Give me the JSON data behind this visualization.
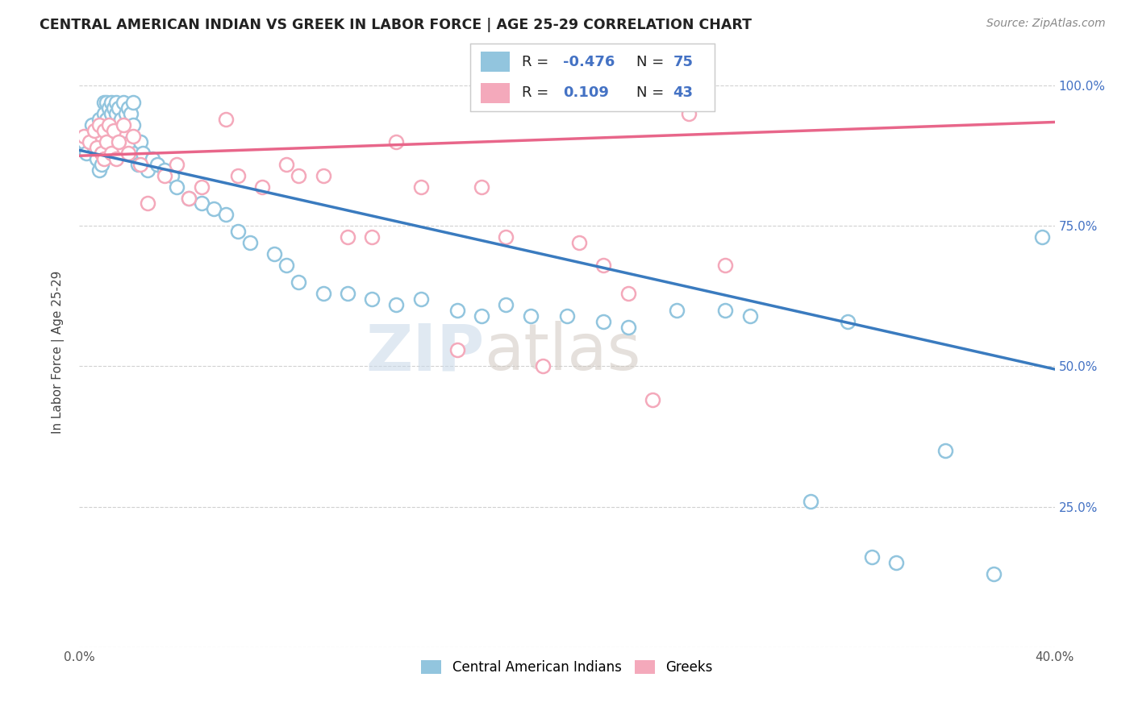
{
  "title": "CENTRAL AMERICAN INDIAN VS GREEK IN LABOR FORCE | AGE 25-29 CORRELATION CHART",
  "source": "Source: ZipAtlas.com",
  "ylabel": "In Labor Force | Age 25-29",
  "xmin": 0.0,
  "xmax": 0.4,
  "ymin": 0.0,
  "ymax": 1.05,
  "blue_color": "#92c5de",
  "pink_color": "#f4a9bb",
  "blue_line_color": "#3a7bbf",
  "pink_line_color": "#e8668a",
  "legend_R_blue": "-0.476",
  "legend_N_blue": "75",
  "legend_R_pink": "0.109",
  "legend_N_pink": "43",
  "watermark_zip": "ZIP",
  "watermark_atlas": "atlas",
  "blue_line_x0": 0.0,
  "blue_line_y0": 0.885,
  "blue_line_x1": 0.4,
  "blue_line_y1": 0.495,
  "pink_line_x0": 0.0,
  "pink_line_y0": 0.875,
  "pink_line_x1": 0.4,
  "pink_line_y1": 0.935,
  "blue_scatter_x": [
    0.002,
    0.003,
    0.004,
    0.005,
    0.006,
    0.007,
    0.007,
    0.008,
    0.008,
    0.009,
    0.009,
    0.01,
    0.01,
    0.01,
    0.011,
    0.011,
    0.012,
    0.012,
    0.013,
    0.013,
    0.014,
    0.014,
    0.015,
    0.015,
    0.015,
    0.016,
    0.017,
    0.018,
    0.018,
    0.019,
    0.02,
    0.021,
    0.022,
    0.022,
    0.023,
    0.024,
    0.025,
    0.026,
    0.028,
    0.03,
    0.032,
    0.035,
    0.038,
    0.04,
    0.045,
    0.05,
    0.055,
    0.06,
    0.065,
    0.07,
    0.08,
    0.085,
    0.09,
    0.1,
    0.11,
    0.12,
    0.13,
    0.14,
    0.155,
    0.165,
    0.175,
    0.185,
    0.2,
    0.215,
    0.225,
    0.245,
    0.265,
    0.275,
    0.3,
    0.315,
    0.325,
    0.335,
    0.355,
    0.375,
    0.395
  ],
  "blue_scatter_y": [
    0.9,
    0.88,
    0.91,
    0.93,
    0.89,
    0.92,
    0.87,
    0.94,
    0.85,
    0.91,
    0.86,
    0.97,
    0.95,
    0.93,
    0.97,
    0.94,
    0.96,
    0.92,
    0.97,
    0.95,
    0.96,
    0.9,
    0.97,
    0.95,
    0.93,
    0.96,
    0.94,
    0.97,
    0.92,
    0.95,
    0.96,
    0.95,
    0.97,
    0.93,
    0.88,
    0.86,
    0.9,
    0.88,
    0.85,
    0.87,
    0.86,
    0.85,
    0.84,
    0.82,
    0.8,
    0.79,
    0.78,
    0.77,
    0.74,
    0.72,
    0.7,
    0.68,
    0.65,
    0.63,
    0.63,
    0.62,
    0.61,
    0.62,
    0.6,
    0.59,
    0.61,
    0.59,
    0.59,
    0.58,
    0.57,
    0.6,
    0.6,
    0.59,
    0.26,
    0.58,
    0.16,
    0.15,
    0.35,
    0.13,
    0.73
  ],
  "pink_scatter_x": [
    0.002,
    0.004,
    0.006,
    0.007,
    0.008,
    0.009,
    0.01,
    0.01,
    0.011,
    0.012,
    0.013,
    0.014,
    0.015,
    0.016,
    0.018,
    0.02,
    0.022,
    0.025,
    0.028,
    0.035,
    0.04,
    0.045,
    0.05,
    0.06,
    0.065,
    0.075,
    0.085,
    0.09,
    0.1,
    0.11,
    0.12,
    0.13,
    0.14,
    0.155,
    0.165,
    0.175,
    0.19,
    0.205,
    0.215,
    0.225,
    0.235,
    0.25,
    0.265
  ],
  "pink_scatter_y": [
    0.91,
    0.9,
    0.92,
    0.89,
    0.93,
    0.88,
    0.92,
    0.87,
    0.9,
    0.93,
    0.88,
    0.92,
    0.87,
    0.9,
    0.93,
    0.88,
    0.91,
    0.86,
    0.79,
    0.84,
    0.86,
    0.8,
    0.82,
    0.94,
    0.84,
    0.82,
    0.86,
    0.84,
    0.84,
    0.73,
    0.73,
    0.9,
    0.82,
    0.53,
    0.82,
    0.73,
    0.5,
    0.72,
    0.68,
    0.63,
    0.44,
    0.95,
    0.68
  ]
}
